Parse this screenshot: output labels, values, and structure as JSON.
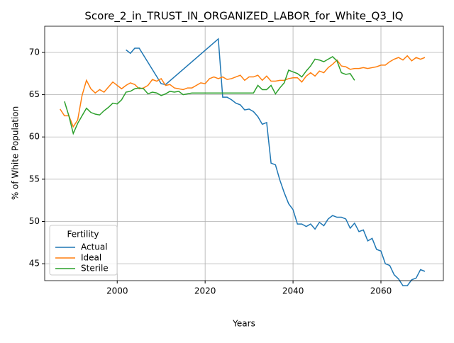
{
  "chart_data": {
    "type": "line",
    "title": "Score_2_in_TRUST_IN_ORGANIZED_LABOR_for_White_Q3_IQ",
    "xlabel": "Years",
    "ylabel": "% of White Population",
    "xlim": [
      1983.5,
      2074.2
    ],
    "ylim": [
      43.0,
      73.1
    ],
    "xticks": [
      2000,
      2020,
      2040,
      2060
    ],
    "yticks": [
      45,
      50,
      55,
      60,
      65,
      70
    ],
    "grid": true,
    "legend": {
      "title": "Fertility",
      "loc": "lower left"
    },
    "series": [
      {
        "name": "Actual",
        "color": "#1f77b4",
        "x": [
          2002,
          2003,
          2004,
          2005,
          2010,
          2011,
          2023,
          2024,
          2025,
          2026,
          2027,
          2028,
          2029,
          2030,
          2031,
          2032,
          2033,
          2034,
          2035,
          2036,
          2037,
          2038,
          2039,
          2040,
          2041,
          2042,
          2043,
          2044,
          2045,
          2046,
          2047,
          2048,
          2049,
          2050,
          2051,
          2052,
          2053,
          2054,
          2055,
          2056,
          2057,
          2058,
          2059,
          2060,
          2061,
          2062,
          2063,
          2064,
          2065,
          2066,
          2067,
          2068,
          2069,
          2070
        ],
        "values": [
          70.3,
          69.9,
          70.5,
          70.5,
          66.3,
          66.2,
          71.6,
          64.7,
          64.7,
          64.4,
          64.0,
          63.8,
          63.2,
          63.3,
          63.0,
          62.4,
          61.5,
          61.7,
          56.9,
          56.7,
          54.9,
          53.4,
          52.1,
          51.4,
          49.7,
          49.7,
          49.4,
          49.7,
          49.1,
          49.9,
          49.5,
          50.3,
          50.7,
          50.5,
          50.5,
          50.3,
          49.2,
          49.8,
          48.8,
          49.0,
          47.7,
          48.0,
          46.7,
          46.5,
          45.0,
          44.8,
          43.7,
          43.2,
          42.4,
          42.4,
          43.1,
          43.3,
          44.3,
          44.1
        ]
      },
      {
        "name": "Ideal",
        "color": "#ff7f0e",
        "x": [
          1987,
          1988,
          1989,
          1990,
          1991,
          1992,
          1993,
          1994,
          1995,
          1996,
          1997,
          1998,
          1999,
          2000,
          2001,
          2002,
          2003,
          2004,
          2005,
          2006,
          2007,
          2008,
          2009,
          2010,
          2011,
          2012,
          2013,
          2014,
          2015,
          2016,
          2017,
          2018,
          2019,
          2020,
          2021,
          2022,
          2023,
          2024,
          2025,
          2026,
          2027,
          2028,
          2029,
          2030,
          2031,
          2032,
          2033,
          2034,
          2035,
          2036,
          2037,
          2038,
          2039,
          2040,
          2041,
          2042,
          2043,
          2044,
          2045,
          2046,
          2047,
          2048,
          2049,
          2050,
          2051,
          2052,
          2053,
          2054,
          2055,
          2056,
          2057,
          2058,
          2059,
          2060,
          2061,
          2062,
          2063,
          2064,
          2065,
          2066,
          2067,
          2068,
          2069,
          2070
        ],
        "values": [
          63.3,
          62.5,
          62.5,
          61.2,
          62.0,
          64.9,
          66.7,
          65.7,
          65.2,
          65.6,
          65.3,
          65.9,
          66.5,
          66.1,
          65.7,
          66.1,
          66.4,
          66.2,
          65.7,
          65.8,
          66.1,
          66.8,
          66.6,
          66.9,
          66.1,
          66.2,
          65.8,
          65.7,
          65.6,
          65.8,
          65.8,
          66.1,
          66.4,
          66.3,
          66.9,
          67.1,
          66.9,
          67.1,
          66.8,
          66.9,
          67.1,
          67.3,
          66.7,
          67.1,
          67.1,
          67.3,
          66.7,
          67.2,
          66.6,
          66.6,
          66.7,
          66.7,
          66.9,
          67.0,
          67.0,
          66.5,
          67.2,
          67.6,
          67.2,
          67.8,
          67.6,
          68.2,
          68.6,
          69.1,
          68.4,
          68.3,
          68.0,
          68.1,
          68.1,
          68.2,
          68.1,
          68.2,
          68.3,
          68.5,
          68.5,
          68.9,
          69.2,
          69.4,
          69.1,
          69.6,
          69.0,
          69.4,
          69.2,
          69.4
        ]
      },
      {
        "name": "Sterile",
        "color": "#2ca02c",
        "x": [
          1988,
          1989,
          1990,
          1991,
          1992,
          1993,
          1994,
          1995,
          1996,
          1997,
          1998,
          1999,
          2000,
          2001,
          2002,
          2003,
          2004,
          2005,
          2006,
          2007,
          2008,
          2009,
          2010,
          2011,
          2012,
          2013,
          2014,
          2015,
          2016,
          2017,
          2031,
          2032,
          2033,
          2034,
          2035,
          2036,
          2037,
          2038,
          2039,
          2040,
          2041,
          2042,
          2043,
          2044,
          2045,
          2046,
          2047,
          2048,
          2049,
          2050,
          2051,
          2052,
          2053,
          2054
        ],
        "values": [
          64.2,
          62.5,
          60.4,
          61.6,
          62.5,
          63.4,
          62.9,
          62.7,
          62.6,
          63.1,
          63.5,
          64.0,
          63.9,
          64.4,
          65.3,
          65.4,
          65.7,
          65.8,
          65.7,
          65.1,
          65.3,
          65.2,
          64.9,
          65.1,
          65.4,
          65.3,
          65.4,
          65.0,
          65.1,
          65.2,
          65.2,
          66.1,
          65.6,
          65.6,
          66.1,
          65.1,
          65.8,
          66.4,
          67.9,
          67.7,
          67.5,
          67.1,
          67.8,
          68.4,
          69.2,
          69.1,
          68.9,
          69.2,
          69.5,
          69.0,
          67.6,
          67.4,
          67.5,
          66.7
        ]
      }
    ]
  }
}
